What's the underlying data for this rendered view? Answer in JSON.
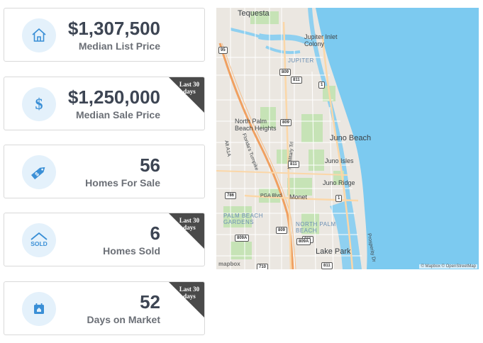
{
  "stats": [
    {
      "value": "$1,307,500",
      "label": "Median List Price",
      "icon": "house-icon",
      "ribbon": ""
    },
    {
      "value": "$1,250,000",
      "label": "Median Sale Price",
      "icon": "dollar-icon",
      "ribbon": "Last 30 days"
    },
    {
      "value": "56",
      "label": "Homes For Sale",
      "icon": "price-tag-icon",
      "ribbon": ""
    },
    {
      "value": "6",
      "label": "Homes Sold",
      "icon": "sold-house-icon",
      "ribbon": "Last 30 days"
    },
    {
      "value": "52",
      "label": "Days on Market",
      "icon": "calendar-icon",
      "ribbon": "Last 30 days"
    }
  ],
  "map": {
    "places": {
      "tequesta": "Tequesta",
      "jupiter_inlet": "Jupiter Inlet Colony",
      "jupiter": "JUPITER",
      "north_palm": "North Palm Beach Heights",
      "juno_beach": "Juno Beach",
      "juno_isles": "Juno Isles",
      "juno_ridge": "Juno Ridge",
      "monet": "Monet",
      "pga_blvd": "PGA Blvd",
      "palm_beach_gardens": "PALM BEACH GARDENS",
      "north_palm_beach": "NORTH PALM BEACH",
      "lake_park": "Lake Park",
      "military_trl": "N Military Trl",
      "florida_turnpike": "Florida's Turnpike",
      "alt_a1a": "Alt A1A",
      "prosperity": "Prosperity Dr"
    },
    "shields": {
      "i95a": "95",
      "r809a": "809",
      "r811a": "811",
      "r1a": "1",
      "r809b": "809",
      "r811b": "811",
      "r786": "786",
      "r809c": "809",
      "r809d": "809A",
      "r1b": "1",
      "r811c": "811",
      "r809e": "809A",
      "r710": "710",
      "r811d": "811"
    },
    "attribution": "© Mapbox © OpenStreetMap",
    "logo": "mapbox"
  },
  "colors": {
    "card_text": "#3d4553",
    "label_text": "#6b6f76",
    "icon_blue": "#3a8fd6",
    "icon_bg": "#e4f1fb",
    "ribbon": "#4a4a4a",
    "ocean": "#7ccaf0",
    "highway": "#f0a060",
    "park": "#b9dca7"
  }
}
